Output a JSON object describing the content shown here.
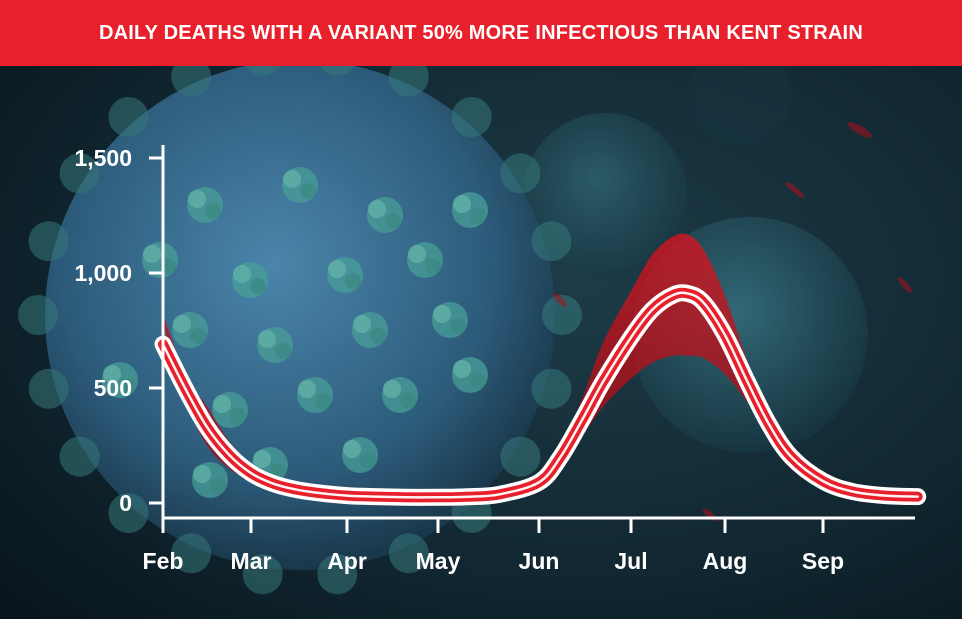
{
  "chart_data": {
    "type": "area",
    "title": "DAILY DEATHS WITH A VARIANT 50% MORE INFECTIOUS THAN KENT STRAIN",
    "xlabel": "",
    "ylabel": "",
    "categories": [
      "Feb",
      "Mar",
      "Apr",
      "May",
      "Jun",
      "Jul",
      "Aug",
      "Sep"
    ],
    "yticks": [
      0,
      500,
      1000,
      1500
    ],
    "ytick_labels": [
      "0",
      "500",
      "1,000",
      "1,500"
    ],
    "ylim": [
      0,
      1600
    ],
    "grid": false,
    "legend": "none",
    "series": [
      {
        "x": [
          "Feb 1",
          "Feb 8",
          "Feb 15",
          "Feb 22",
          "Mar 1",
          "Mar 8",
          "Mar 15",
          "Mar 22",
          "Apr 1",
          "Apr 10",
          "Apr 20",
          "May 1",
          "May 10",
          "May 20",
          "Jun 1",
          "Jun 8",
          "Jun 15",
          "Jun 22",
          "Jul 1",
          "Jul 8",
          "Jul 15",
          "Jul 20",
          "Jul 25",
          "Aug 1",
          "Aug 8",
          "Aug 15",
          "Aug 22",
          "Sep 1",
          "Sep 10",
          "Sep 20",
          "Sep 30"
        ],
        "values": [
          690,
          500,
          330,
          210,
          130,
          85,
          60,
          45,
          32,
          28,
          25,
          25,
          27,
          38,
          90,
          200,
          360,
          530,
          720,
          840,
          905,
          910,
          870,
          730,
          530,
          340,
          200,
          95,
          50,
          32,
          28
        ],
        "lower": [
          780,
          450,
          250,
          150,
          95,
          65,
          48,
          38,
          28,
          25,
          23,
          23,
          25,
          33,
          80,
          170,
          290,
          420,
          540,
          610,
          640,
          640,
          630,
          560,
          440,
          310,
          200,
          100,
          55,
          35,
          30
        ],
        "upper": [
          820,
          560,
          420,
          270,
          165,
          105,
          72,
          52,
          36,
          31,
          27,
          27,
          29,
          43,
          100,
          230,
          450,
          700,
          920,
          1080,
          1160,
          1165,
          1100,
          900,
          620,
          380,
          220,
          105,
          55,
          35,
          30
        ]
      }
    ],
    "colors": {
      "line": "#e8202c",
      "line_outline": "#ffffff",
      "band": "#c0101a",
      "banner": "#e8202c",
      "axis": "#ffffff",
      "background": "#0b1a22",
      "virus": "#3e7aa0",
      "spike": "#4ea8a0"
    }
  }
}
